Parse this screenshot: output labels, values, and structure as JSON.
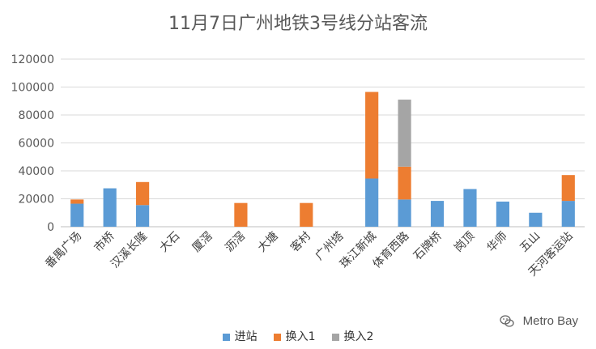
{
  "chart_data": {
    "type": "bar",
    "stacked": true,
    "title": "11月7日广州地铁3号线分站客流",
    "categories": [
      "番禺广场",
      "市桥",
      "汉溪长隆",
      "大石",
      "厦滘",
      "沥滘",
      "大塘",
      "客村",
      "广州塔",
      "珠江新城",
      "体育西路",
      "石牌桥",
      "岗顶",
      "华师",
      "五山",
      "天河客运站"
    ],
    "series": [
      {
        "name": "进站",
        "color": "#5b9bd5",
        "values": [
          16500,
          27500,
          15500,
          0,
          0,
          0,
          0,
          0,
          0,
          34500,
          19500,
          18500,
          27000,
          18000,
          10000,
          18500
        ]
      },
      {
        "name": "换入1",
        "color": "#ed7d31",
        "values": [
          3000,
          0,
          16500,
          0,
          0,
          17000,
          0,
          17000,
          0,
          62000,
          23500,
          0,
          0,
          0,
          0,
          18500
        ]
      },
      {
        "name": "换入2",
        "color": "#a5a5a5",
        "values": [
          0,
          0,
          0,
          0,
          0,
          0,
          0,
          0,
          0,
          0,
          48000,
          0,
          0,
          0,
          0,
          0
        ]
      }
    ],
    "ylim": [
      0,
      120000
    ],
    "yticks": [
      0,
      20000,
      40000,
      60000,
      80000,
      100000,
      120000
    ],
    "grid": true,
    "legend": "bottom"
  },
  "watermark": {
    "text": "Metro Bay",
    "icon": "wechat-icon"
  }
}
